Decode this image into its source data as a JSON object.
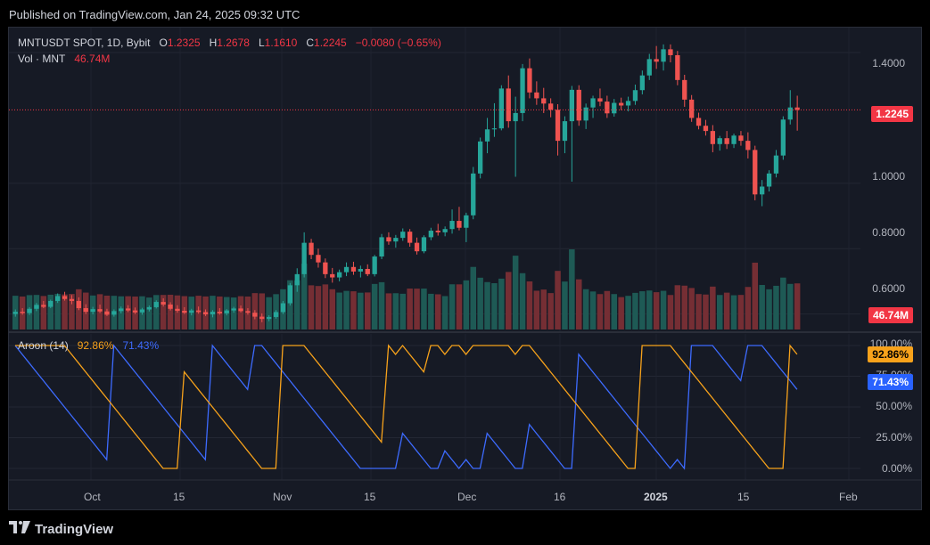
{
  "header": {
    "published": "Published on TradingView.com, Jan 24, 2025 09:32 UTC"
  },
  "legend": {
    "symbol": "MNTUSDT SPOT, 1D, Bybit",
    "o_label": "O",
    "o": "1.2325",
    "h_label": "H",
    "h": "1.2678",
    "l_label": "L",
    "l": "1.1610",
    "c_label": "C",
    "c": "1.2245",
    "change": "−0.0080 (−0.65%)",
    "vol_label": "Vol · MNT",
    "vol": "46.74M"
  },
  "aroon": {
    "label": "Aroon (14)",
    "up": "92.86%",
    "down": "71.43%"
  },
  "price_axis": {
    "ticks": [
      "1.4000",
      "1.0000",
      "0.8000",
      "0.6000"
    ],
    "last_price_tag": "1.2245",
    "volume_tag": "46.74M"
  },
  "aroon_axis": {
    "ticks": [
      "100.00%",
      "75.00%",
      "50.00%",
      "25.00%",
      "0.00%"
    ],
    "up_tag": "92.86%",
    "down_tag": "71.43%"
  },
  "time_axis": {
    "labels": [
      "Oct",
      "15",
      "Nov",
      "15",
      "Dec",
      "16",
      "2025",
      "15",
      "Feb"
    ]
  },
  "footer": {
    "brand": "TradingView"
  },
  "colors": {
    "up": "#26a69a",
    "down": "#ef5350",
    "aroon_up": "#f7a21b",
    "aroon_down": "#2962ff",
    "price_line": "#f23645"
  },
  "chart_data": [
    {
      "type": "candlestick",
      "title": "MNTUSDT SPOT, 1D, Bybit",
      "x_range": [
        "2024-09-21",
        "2025-01-24"
      ],
      "ylim": [
        0.55,
        1.46
      ],
      "price_ticks": [
        1.4,
        1.0,
        0.8,
        0.6
      ],
      "last_close": 1.2245,
      "candles_ohlc": [
        [
          0.6,
          0.614,
          0.592,
          0.607
        ],
        [
          0.607,
          0.618,
          0.598,
          0.603
        ],
        [
          0.603,
          0.621,
          0.597,
          0.616
        ],
        [
          0.616,
          0.634,
          0.609,
          0.628
        ],
        [
          0.628,
          0.64,
          0.618,
          0.622
        ],
        [
          0.622,
          0.644,
          0.618,
          0.64
        ],
        [
          0.64,
          0.663,
          0.634,
          0.655
        ],
        [
          0.655,
          0.668,
          0.641,
          0.646
        ],
        [
          0.646,
          0.658,
          0.63,
          0.64
        ],
        [
          0.64,
          0.651,
          0.612,
          0.618
        ],
        [
          0.618,
          0.63,
          0.6,
          0.607
        ],
        [
          0.607,
          0.622,
          0.599,
          0.615
        ],
        [
          0.615,
          0.629,
          0.603,
          0.608
        ],
        [
          0.608,
          0.616,
          0.594,
          0.598
        ],
        [
          0.598,
          0.614,
          0.592,
          0.609
        ],
        [
          0.609,
          0.623,
          0.602,
          0.617
        ],
        [
          0.617,
          0.627,
          0.606,
          0.611
        ],
        [
          0.611,
          0.62,
          0.6,
          0.605
        ],
        [
          0.605,
          0.619,
          0.598,
          0.614
        ],
        [
          0.614,
          0.626,
          0.608,
          0.621
        ],
        [
          0.621,
          0.642,
          0.617,
          0.637
        ],
        [
          0.637,
          0.648,
          0.623,
          0.629
        ],
        [
          0.629,
          0.636,
          0.611,
          0.616
        ],
        [
          0.616,
          0.627,
          0.604,
          0.61
        ],
        [
          0.61,
          0.621,
          0.6,
          0.604
        ],
        [
          0.604,
          0.616,
          0.596,
          0.611
        ],
        [
          0.611,
          0.623,
          0.601,
          0.606
        ],
        [
          0.606,
          0.614,
          0.594,
          0.599
        ],
        [
          0.599,
          0.612,
          0.59,
          0.607
        ],
        [
          0.607,
          0.618,
          0.598,
          0.602
        ],
        [
          0.602,
          0.615,
          0.596,
          0.611
        ],
        [
          0.611,
          0.622,
          0.604,
          0.617
        ],
        [
          0.617,
          0.626,
          0.605,
          0.609
        ],
        [
          0.609,
          0.618,
          0.598,
          0.604
        ],
        [
          0.604,
          0.612,
          0.584,
          0.592
        ],
        [
          0.592,
          0.602,
          0.575,
          0.585
        ],
        [
          0.585,
          0.596,
          0.578,
          0.591
        ],
        [
          0.591,
          0.612,
          0.586,
          0.606
        ],
        [
          0.606,
          0.64,
          0.6,
          0.633
        ],
        [
          0.633,
          0.695,
          0.626,
          0.688
        ],
        [
          0.688,
          0.74,
          0.668,
          0.722
        ],
        [
          0.722,
          0.85,
          0.712,
          0.818
        ],
        [
          0.818,
          0.83,
          0.768,
          0.781
        ],
        [
          0.781,
          0.8,
          0.742,
          0.758
        ],
        [
          0.758,
          0.77,
          0.71,
          0.722
        ],
        [
          0.722,
          0.741,
          0.696,
          0.712
        ],
        [
          0.712,
          0.736,
          0.7,
          0.728
        ],
        [
          0.728,
          0.758,
          0.716,
          0.744
        ],
        [
          0.744,
          0.76,
          0.72,
          0.73
        ],
        [
          0.73,
          0.748,
          0.712,
          0.738
        ],
        [
          0.738,
          0.752,
          0.716,
          0.722
        ],
        [
          0.722,
          0.781,
          0.715,
          0.776
        ],
        [
          0.776,
          0.845,
          0.768,
          0.835
        ],
        [
          0.835,
          0.85,
          0.812,
          0.822
        ],
        [
          0.822,
          0.842,
          0.803,
          0.833
        ],
        [
          0.833,
          0.862,
          0.824,
          0.852
        ],
        [
          0.852,
          0.86,
          0.806,
          0.818
        ],
        [
          0.818,
          0.834,
          0.782,
          0.792
        ],
        [
          0.792,
          0.841,
          0.786,
          0.835
        ],
        [
          0.835,
          0.864,
          0.826,
          0.855
        ],
        [
          0.855,
          0.876,
          0.84,
          0.85
        ],
        [
          0.85,
          0.868,
          0.838,
          0.86
        ],
        [
          0.86,
          0.92,
          0.846,
          0.885
        ],
        [
          0.885,
          0.928,
          0.856,
          0.864
        ],
        [
          0.864,
          0.91,
          0.82,
          0.902
        ],
        [
          0.902,
          1.05,
          0.89,
          1.03
        ],
        [
          1.03,
          1.14,
          1.015,
          1.128
        ],
        [
          1.128,
          1.2,
          1.092,
          1.165
        ],
        [
          1.165,
          1.245,
          1.142,
          1.168
        ],
        [
          1.168,
          1.3,
          1.162,
          1.29
        ],
        [
          1.29,
          1.33,
          1.17,
          1.19
        ],
        [
          1.19,
          1.265,
          1.02,
          1.215
        ],
        [
          1.215,
          1.365,
          1.19,
          1.352
        ],
        [
          1.352,
          1.382,
          1.26,
          1.278
        ],
        [
          1.278,
          1.312,
          1.24,
          1.26
        ],
        [
          1.26,
          1.292,
          1.215,
          1.244
        ],
        [
          1.244,
          1.26,
          1.202,
          1.225
        ],
        [
          1.225,
          1.242,
          1.085,
          1.13
        ],
        [
          1.13,
          1.205,
          1.092,
          1.19
        ],
        [
          1.19,
          1.298,
          1.005,
          1.286
        ],
        [
          1.286,
          1.3,
          1.176,
          1.192
        ],
        [
          1.192,
          1.244,
          1.166,
          1.232
        ],
        [
          1.232,
          1.268,
          1.2,
          1.26
        ],
        [
          1.26,
          1.29,
          1.236,
          1.25
        ],
        [
          1.25,
          1.268,
          1.2,
          1.214
        ],
        [
          1.214,
          1.258,
          1.204,
          1.246
        ],
        [
          1.246,
          1.262,
          1.224,
          1.238
        ],
        [
          1.238,
          1.265,
          1.22,
          1.252
        ],
        [
          1.252,
          1.302,
          1.24,
          1.285
        ],
        [
          1.285,
          1.345,
          1.272,
          1.33
        ],
        [
          1.33,
          1.396,
          1.316,
          1.38
        ],
        [
          1.38,
          1.42,
          1.35,
          1.372
        ],
        [
          1.372,
          1.425,
          1.345,
          1.41
        ],
        [
          1.41,
          1.425,
          1.37,
          1.392
        ],
        [
          1.392,
          1.405,
          1.3,
          1.316
        ],
        [
          1.316,
          1.332,
          1.234,
          1.256
        ],
        [
          1.256,
          1.27,
          1.188,
          1.2
        ],
        [
          1.2,
          1.216,
          1.165,
          1.176
        ],
        [
          1.176,
          1.194,
          1.146,
          1.16
        ],
        [
          1.16,
          1.178,
          1.095,
          1.12
        ],
        [
          1.12,
          1.145,
          1.1,
          1.138
        ],
        [
          1.138,
          1.16,
          1.105,
          1.12
        ],
        [
          1.12,
          1.152,
          1.108,
          1.146
        ],
        [
          1.146,
          1.16,
          1.115,
          1.13
        ],
        [
          1.13,
          1.156,
          1.076,
          1.102
        ],
        [
          1.102,
          1.115,
          0.948,
          0.966
        ],
        [
          0.966,
          1.01,
          0.93,
          0.99
        ],
        [
          0.99,
          1.04,
          0.975,
          1.03
        ],
        [
          1.03,
          1.102,
          1.018,
          1.085
        ],
        [
          1.085,
          1.205,
          1.072,
          1.195
        ],
        [
          1.195,
          1.285,
          1.18,
          1.232
        ],
        [
          1.232,
          1.268,
          1.161,
          1.2245
        ]
      ],
      "volume_series": [
        {
          "name": "Vol · MNT",
          "last": "46.74M"
        }
      ],
      "aroon_series": [
        {
          "name": "Aroon Up",
          "last": 92.86
        },
        {
          "name": "Aroon Down",
          "last": 71.43
        }
      ]
    }
  ]
}
